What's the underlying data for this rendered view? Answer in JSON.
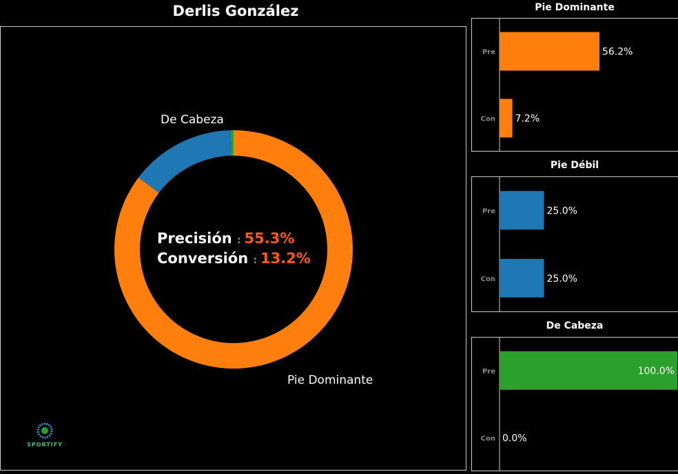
{
  "title": "Derlis González",
  "chart_data": [
    {
      "type": "pie",
      "categories": [
        "Pie Dominante",
        "Pie Débil",
        "De Cabeza"
      ],
      "values": [
        85.3,
        14.3,
        0.4
      ],
      "visible_labels": {
        "Pie Dominante": "Pie Dominante",
        "De Cabeza": "De Cabeza"
      },
      "colors": [
        "#ff7f0e",
        "#1f77b4",
        "#2ca02c"
      ],
      "hole": true,
      "center_text": [
        {
          "label": "Precisión",
          "sep": ":",
          "value": "55.3%"
        },
        {
          "label": "Conversión",
          "sep": ":",
          "value": "13.2%"
        }
      ],
      "value_color": "#ff5a10"
    },
    {
      "type": "bar",
      "orientation": "horizontal",
      "title": "Pie Dominante",
      "categories": [
        "Pre",
        "Con"
      ],
      "values": [
        56.2,
        7.2
      ],
      "labels": [
        "56.2%",
        "7.2%"
      ],
      "color": "#ff7f0e",
      "xlim": [
        0,
        100
      ]
    },
    {
      "type": "bar",
      "orientation": "horizontal",
      "title": "Pie Débil",
      "categories": [
        "Pre",
        "Con"
      ],
      "values": [
        25.0,
        25.0
      ],
      "labels": [
        "25.0%",
        "25.0%"
      ],
      "color": "#1f77b4",
      "xlim": [
        0,
        100
      ]
    },
    {
      "type": "bar",
      "orientation": "horizontal",
      "title": "De Cabeza",
      "categories": [
        "Pre",
        "Con"
      ],
      "values": [
        100.0,
        0.0
      ],
      "labels": [
        "100.0%",
        "0.0%"
      ],
      "color": "#2ca02c",
      "xlim": [
        0,
        100
      ]
    }
  ],
  "logo": {
    "text": "SPORTIFY"
  }
}
